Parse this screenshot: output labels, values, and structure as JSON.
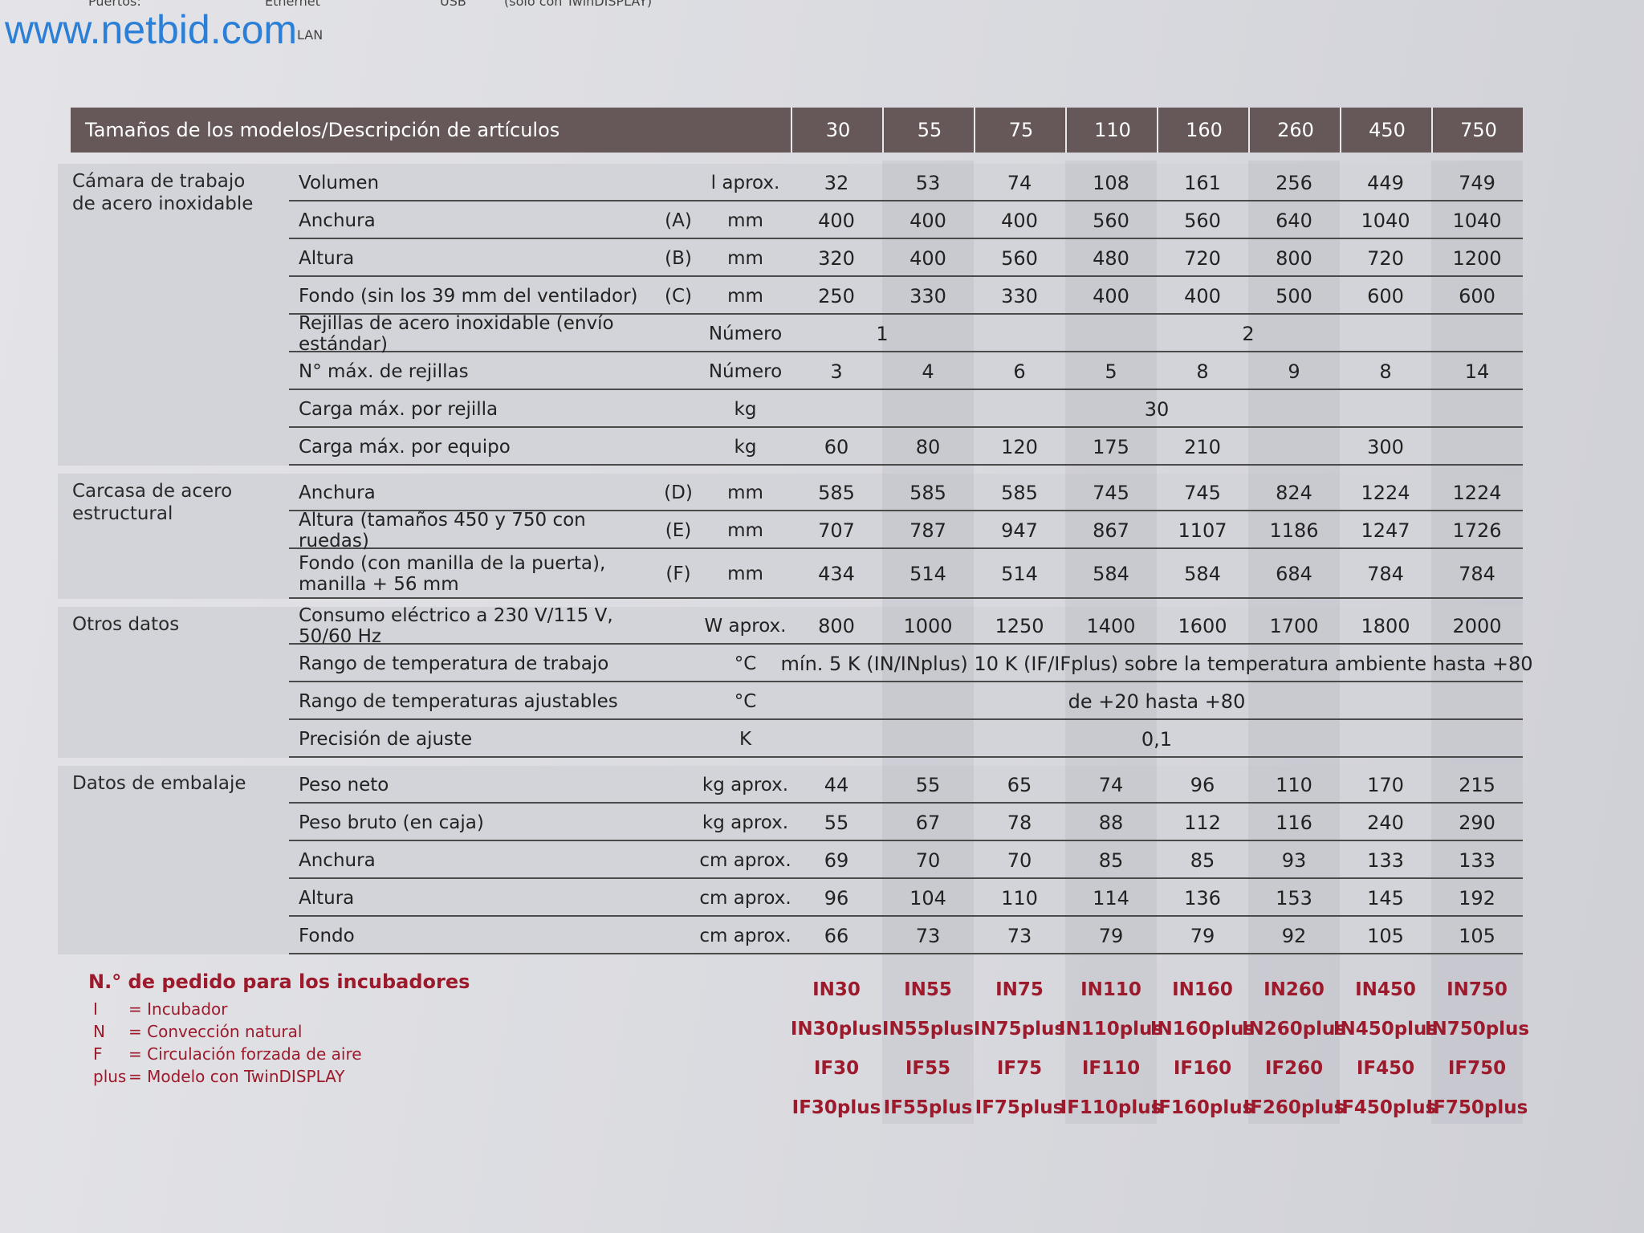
{
  "top": {
    "watermark": "www.netbid.com",
    "fragments": [
      "Puertos:",
      "Ethernet",
      "LAN",
      "USB",
      "(solo con TwinDISPLAY)"
    ]
  },
  "table": {
    "title": "Tamaños de los modelos/Descripción de artículos",
    "sizes": [
      "30",
      "55",
      "75",
      "110",
      "160",
      "260",
      "450",
      "750"
    ],
    "groups": [
      {
        "label": "Cámara de trabajo de acero inoxidable",
        "rows": [
          {
            "label": "Volumen",
            "code": null,
            "unit": "l aprox.",
            "cells": [
              "32",
              "53",
              "74",
              "108",
              "161",
              "256",
              "449",
              "749"
            ]
          },
          {
            "label": "Anchura",
            "code": "(A)",
            "unit": "mm",
            "cells": [
              "400",
              "400",
              "400",
              "560",
              "560",
              "640",
              "1040",
              "1040"
            ]
          },
          {
            "label": "Altura",
            "code": "(B)",
            "unit": "mm",
            "cells": [
              "320",
              "400",
              "560",
              "480",
              "720",
              "800",
              "720",
              "1200"
            ]
          },
          {
            "label": "Fondo (sin los 39 mm del ventilador)",
            "code": "(C)",
            "unit": "mm",
            "cells": [
              "250",
              "330",
              "330",
              "400",
              "400",
              "500",
              "600",
              "600"
            ]
          },
          {
            "label": "Rejillas de acero inoxidable (envío estándar)",
            "code": null,
            "unit": "Número",
            "cells": [
              "1",
              null,
              "2",
              null,
              null,
              null,
              null,
              null
            ]
          },
          {
            "label": "N° máx. de rejillas",
            "code": null,
            "unit": "Número",
            "cells": [
              "3",
              "4",
              "6",
              "5",
              "8",
              "9",
              "8",
              "14"
            ]
          },
          {
            "label": "Carga máx. por rejilla",
            "code": null,
            "unit": "kg",
            "cells": [
              "30",
              null,
              null,
              null,
              null,
              null,
              null,
              null
            ]
          },
          {
            "label": "Carga máx. por equipo",
            "code": null,
            "unit": "kg",
            "cells": [
              "60",
              "80",
              "120",
              "175",
              "210",
              "300",
              null,
              null
            ]
          }
        ]
      },
      {
        "label": "Carcasa de acero estructural",
        "rows": [
          {
            "label": "Anchura",
            "code": "(D)",
            "unit": "mm",
            "cells": [
              "585",
              "585",
              "585",
              "745",
              "745",
              "824",
              "1224",
              "1224"
            ]
          },
          {
            "label": "Altura (tamaños 450 y 750 con ruedas)",
            "code": "(E)",
            "unit": "mm",
            "cells": [
              "707",
              "787",
              "947",
              "867",
              "1107",
              "1186",
              "1247",
              "1726"
            ]
          },
          {
            "label": "Fondo (con manilla de la puerta), manilla + 56 mm",
            "code": "(F)",
            "unit": "mm",
            "cells": [
              "434",
              "514",
              "514",
              "584",
              "584",
              "684",
              "784",
              "784"
            ]
          }
        ]
      },
      {
        "label": "Otros datos",
        "rows": [
          {
            "label": "Consumo eléctrico a 230 V/115 V, 50/60 Hz",
            "code": null,
            "unit": "W aprox.",
            "cells": [
              "800",
              "1000",
              "1250",
              "1400",
              "1600",
              "1700",
              "1800",
              "2000"
            ]
          },
          {
            "label": "Rango de temperatura de trabajo",
            "code": null,
            "unit": "°C",
            "cells": [
              "mín. 5 K (IN/INplus) 10 K (IF/IFplus) sobre la temperatura ambiente hasta +80",
              null,
              null,
              null,
              null,
              null,
              null,
              null
            ]
          },
          {
            "label": "Rango de temperaturas ajustables",
            "code": null,
            "unit": "°C",
            "cells": [
              "de +20 hasta +80",
              null,
              null,
              null,
              null,
              null,
              null,
              null
            ]
          },
          {
            "label": "Precisión de ajuste",
            "code": null,
            "unit": "K",
            "cells": [
              "0,1",
              null,
              null,
              null,
              null,
              null,
              null,
              null
            ]
          }
        ]
      },
      {
        "label": "Datos de embalaje",
        "rows": [
          {
            "label": "Peso neto",
            "code": null,
            "unit": "kg aprox.",
            "cells": [
              "44",
              "55",
              "65",
              "74",
              "96",
              "110",
              "170",
              "215"
            ]
          },
          {
            "label": "Peso bruto (en caja)",
            "code": null,
            "unit": "kg aprox.",
            "cells": [
              "55",
              "67",
              "78",
              "88",
              "112",
              "116",
              "240",
              "290"
            ]
          },
          {
            "label": "Anchura",
            "code": null,
            "unit": "cm aprox.",
            "cells": [
              "69",
              "70",
              "70",
              "85",
              "85",
              "93",
              "133",
              "133"
            ]
          },
          {
            "label": "Altura",
            "code": null,
            "unit": "cm aprox.",
            "cells": [
              "96",
              "104",
              "110",
              "114",
              "136",
              "153",
              "145",
              "192"
            ]
          },
          {
            "label": "Fondo",
            "code": null,
            "unit": "cm aprox.",
            "cells": [
              "66",
              "73",
              "73",
              "79",
              "79",
              "92",
              "105",
              "105"
            ]
          }
        ]
      }
    ]
  },
  "orders": {
    "title": "N.° de pedido para los incubadores",
    "legend": [
      {
        "key": "I",
        "text": "= Incubador"
      },
      {
        "key": "N",
        "text": "= Convección natural"
      },
      {
        "key": "F",
        "text": "= Circulación forzada de aire"
      },
      {
        "key": "plus",
        "text": "= Modelo con TwinDISPLAY"
      }
    ],
    "rows": [
      [
        "IN30",
        "IN55",
        "IN75",
        "IN110",
        "IN160",
        "IN260",
        "IN450",
        "IN750"
      ],
      [
        "IN30plus",
        "IN55plus",
        "IN75plus",
        "IN110plus",
        "IN160plus",
        "IN260plus",
        "IN450plus",
        "IN750plus"
      ],
      [
        "IF30",
        "IF55",
        "IF75",
        "IF110",
        "IF160",
        "IF260",
        "IF450",
        "IF750"
      ],
      [
        "IF30plus",
        "IF55plus",
        "IF75plus",
        "IF110plus",
        "IF160plus",
        "IF260plus",
        "IF450plus",
        "IF750plus"
      ]
    ]
  }
}
